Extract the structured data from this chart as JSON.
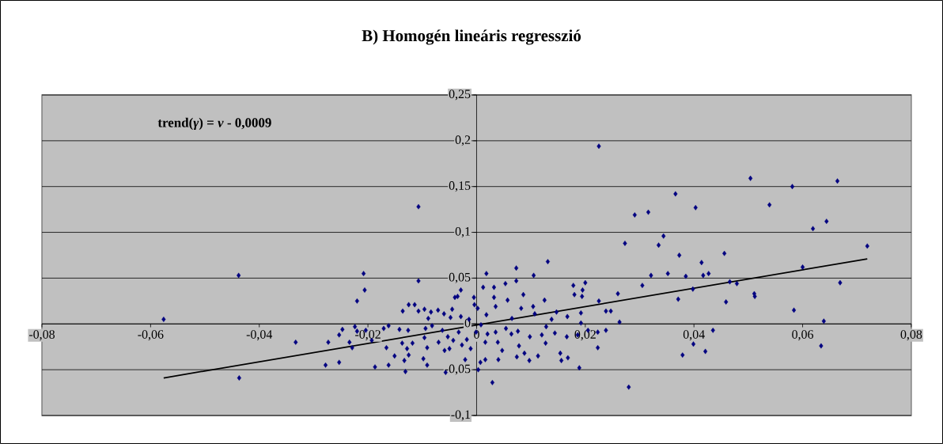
{
  "chart_data": {
    "type": "scatter",
    "title": "B) Homogén lineáris regresszió",
    "annotations": [
      "**trend(*γ*) = *ν*  - 0,0009**"
    ],
    "xlim": [
      -0.08,
      0.08
    ],
    "ylim": [
      -0.1,
      0.25
    ],
    "xticks": [
      {
        "value": -0.08,
        "label": "-0,08"
      },
      {
        "value": -0.06,
        "label": "-0,06"
      },
      {
        "value": -0.04,
        "label": "-0,04"
      },
      {
        "value": -0.02,
        "label": "-0,02"
      },
      0,
      {
        "value": 0.02,
        "label": "0,02"
      },
      {
        "value": 0.04,
        "label": "0,04"
      },
      {
        "value": 0.06,
        "label": "0,06"
      },
      {
        "value": 0.08,
        "label": "0,08"
      }
    ],
    "yticks": [
      {
        "value": -0.1,
        "label": "-0,1"
      },
      {
        "value": -0.05,
        "label": "-0,05"
      },
      0,
      {
        "value": 0.05,
        "label": "0,05"
      },
      {
        "value": 0.1,
        "label": "0,1"
      },
      {
        "value": 0.15,
        "label": "0,15"
      },
      {
        "value": 0.2,
        "label": "0,2"
      },
      {
        "value": 0.25,
        "label": "0,25"
      }
    ],
    "grid": "y",
    "series": [
      {
        "color": "#000080",
        "marker": "diamond",
        "x": [
          -0.0576,
          -0.0438,
          -0.0437,
          -0.0333,
          -0.0273,
          -0.0278,
          -0.0253,
          -0.0253,
          -0.0247,
          -0.0234,
          -0.0229,
          -0.0224,
          -0.022,
          -0.022,
          -0.0208,
          -0.0206,
          -0.0204,
          -0.0193,
          -0.0187,
          -0.0171,
          -0.0166,
          -0.0162,
          -0.0162,
          -0.0151,
          -0.0142,
          -0.0137,
          -0.0136,
          -0.0133,
          -0.0131,
          -0.0128,
          -0.0126,
          -0.0125,
          -0.0118,
          -0.0125,
          -0.0114,
          -0.0107,
          -0.0107,
          -0.0107,
          -0.0098,
          -0.0096,
          -0.0096,
          -0.0091,
          -0.0091,
          -0.0094,
          -0.0089,
          -0.0084,
          -0.0082,
          -0.0071,
          -0.007,
          -0.0063,
          -0.006,
          -0.0059,
          -0.0057,
          -0.0053,
          -0.005,
          -0.0048,
          -0.0045,
          -0.0043,
          -0.004,
          -0.0035,
          -0.0033,
          -0.0029,
          -0.0029,
          -0.0027,
          -0.0021,
          -0.0018,
          -0.0014,
          -0.0011,
          -0.0005,
          -0.0004,
          -0.0001,
          0.0003,
          0.0002,
          0.0007,
          0.0008,
          0.0012,
          0.0016,
          0.0016,
          0.0018,
          0.0018,
          0.002,
          0.0029,
          0.0032,
          0.0032,
          0.0035,
          0.0035,
          0.0039,
          0.004,
          0.0047,
          0.0053,
          0.0054,
          0.0057,
          0.0064,
          0.0065,
          0.0073,
          0.0073,
          0.0074,
          0.0076,
          0.0078,
          0.0082,
          0.0086,
          0.0088,
          0.0097,
          0.0098,
          0.0104,
          0.0105,
          0.0107,
          0.0113,
          0.012,
          0.0125,
          0.0127,
          0.0128,
          0.0131,
          0.0138,
          0.0144,
          0.0147,
          0.0154,
          0.0156,
          0.0166,
          0.0167,
          0.0168,
          0.0178,
          0.018,
          0.0186,
          0.0189,
          0.0192,
          0.0192,
          0.0194,
          0.0195,
          0.02,
          0.0205,
          0.0223,
          0.0223,
          0.0225,
          0.0225,
          0.0238,
          0.0238,
          0.0247,
          0.026,
          0.0263,
          0.0273,
          0.028,
          0.0291,
          0.0305,
          0.0316,
          0.0321,
          0.0335,
          0.0344,
          0.0352,
          0.0366,
          0.0371,
          0.0373,
          0.0379,
          0.0385,
          0.0398,
          0.0399,
          0.0403,
          0.0414,
          0.0417,
          0.0421,
          0.0427,
          0.0435,
          0.0456,
          0.0459,
          0.0466,
          0.0479,
          0.0504,
          0.0511,
          0.0512,
          0.0539,
          0.0581,
          0.0584,
          0.06,
          0.0619,
          0.0634,
          0.0639,
          0.0644,
          0.0664,
          0.0669,
          0.0719
        ],
        "values": [
          0.005,
          0.053,
          -0.059,
          -0.02,
          -0.02,
          -0.045,
          -0.042,
          -0.012,
          -0.006,
          -0.02,
          -0.026,
          -0.003,
          -0.008,
          0.025,
          0.055,
          0.037,
          -0.007,
          -0.018,
          -0.047,
          -0.005,
          -0.026,
          -0.045,
          -0.002,
          -0.035,
          -0.006,
          -0.021,
          0.014,
          -0.04,
          -0.052,
          -0.027,
          -0.007,
          -0.034,
          -0.021,
          0.021,
          0.021,
          0.128,
          0.047,
          0.014,
          -0.038,
          -0.015,
          0.016,
          -0.026,
          -0.045,
          -0.005,
          0.006,
          0.013,
          -0.002,
          0.015,
          -0.02,
          -0.007,
          0.011,
          -0.029,
          -0.053,
          -0.014,
          -0.027,
          0.007,
          0.016,
          -0.018,
          0.029,
          0.03,
          -0.009,
          0.037,
          0.008,
          -0.023,
          -0.039,
          -0.017,
          0.005,
          -0.027,
          0.029,
          0.021,
          -0.009,
          -0.05,
          0.017,
          -0.042,
          -0.001,
          0.04,
          -0.02,
          -0.039,
          0.055,
          0.01,
          -0.011,
          -0.064,
          0.04,
          0.029,
          0.019,
          -0.009,
          -0.02,
          -0.039,
          -0.029,
          0.044,
          -0.005,
          0.026,
          -0.011,
          0.006,
          0.061,
          0.047,
          -0.036,
          -0.008,
          -0.024,
          0.017,
          0.032,
          -0.032,
          -0.04,
          -0.014,
          0.019,
          0.053,
          0.011,
          -0.035,
          -0.012,
          0.026,
          -0.021,
          -0.003,
          0.068,
          0.005,
          -0.01,
          0.013,
          -0.032,
          -0.04,
          -0.014,
          0.008,
          -0.037,
          0.042,
          0.032,
          -0.012,
          -0.048,
          0.012,
          0.001,
          0.03,
          0.037,
          0.045,
          -0.007,
          -0.026,
          -0.009,
          0.194,
          0.025,
          -0.007,
          0.014,
          0.014,
          0.033,
          0.002,
          0.088,
          -0.069,
          0.119,
          0.042,
          0.122,
          0.053,
          0.086,
          0.096,
          0.055,
          0.142,
          0.027,
          0.075,
          -0.034,
          0.052,
          0.038,
          -0.022,
          0.127,
          0.067,
          0.053,
          -0.03,
          0.055,
          -0.007,
          0.077,
          0.024,
          0.046,
          0.044,
          0.159,
          0.033,
          0.03,
          0.13,
          0.15,
          0.015,
          0.062,
          0.104,
          -0.024,
          0.003,
          0.112,
          0.156,
          0.045,
          0.085
        ]
      },
      {
        "type": "line",
        "color": "#000000",
        "marker": "none",
        "x": [
          -0.0576,
          0.0719
        ],
        "values": [
          -0.059,
          0.071
        ]
      }
    ]
  }
}
